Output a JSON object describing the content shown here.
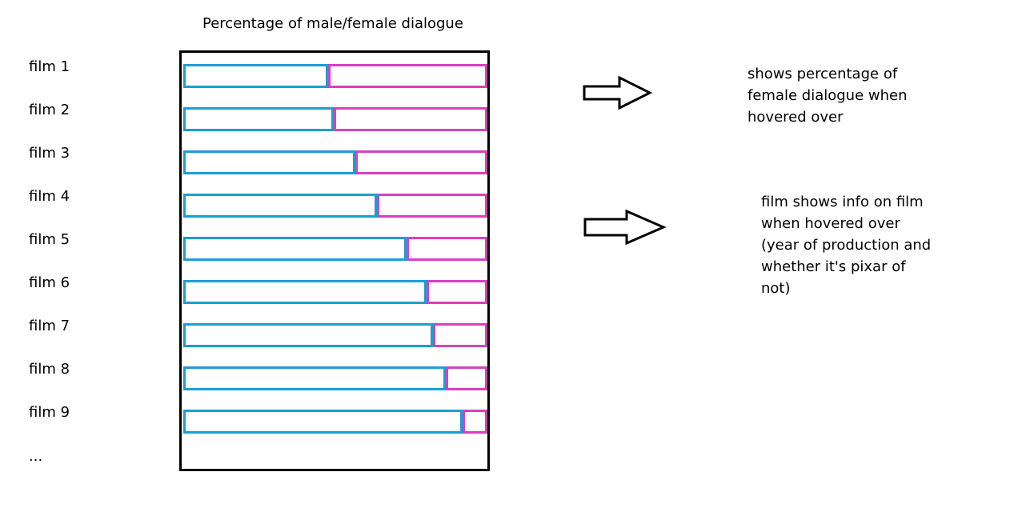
{
  "title": "Percentage of male/female dialogue",
  "chart_data": {
    "type": "bar",
    "stacked": true,
    "orientation": "horizontal",
    "title": "Percentage of male/female dialogue",
    "categories": [
      "film 1",
      "film 2",
      "film 3",
      "film 4",
      "film 5",
      "film 6",
      "film 7",
      "film 8",
      "film 9"
    ],
    "series": [
      {
        "values": [
          47.6,
          49.5,
          56.7,
          63.6,
          73.4,
          80.1,
          82.2,
          86.2,
          91.8
        ],
        "color": "#1a9fd6"
      },
      {
        "values": [
          52.4,
          50.5,
          43.3,
          36.4,
          26.6,
          19.9,
          17.8,
          13.8,
          8.2
        ],
        "color": "#d93fbf"
      }
    ],
    "xlim": [
      0,
      100
    ],
    "more_indicator": "..."
  },
  "notes": [
    {
      "lines": [
        "shows percentage of",
        "female dialogue when",
        "hovered over"
      ],
      "icon": "right-arrow-icon"
    },
    {
      "lines": [
        "film shows info on film",
        "when hovered over",
        "(year of production and",
        "whether it's pixar of",
        "not)"
      ],
      "icon": "right-arrow-icon"
    }
  ]
}
